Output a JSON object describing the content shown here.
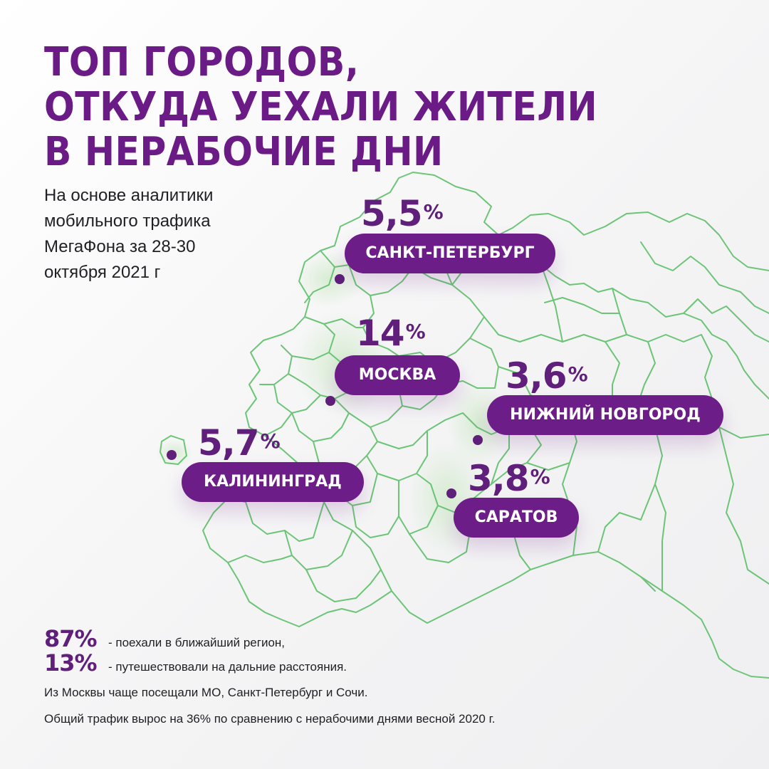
{
  "title": {
    "line1": "ТОП ГОРОДОВ,",
    "line2": "ОТКУДА УЕХАЛИ ЖИТЕЛИ",
    "line3": "В НЕРАБОЧИЕ ДНИ"
  },
  "subtitle": {
    "line1": "На основе аналитики",
    "line2": "мобильного трафика",
    "line3": "МегаФона за 28-30",
    "line4": "октября 2021 г"
  },
  "cities": [
    {
      "name": "САНКТ-ПЕТЕРБУРГ",
      "value": "5,5",
      "unit": "%"
    },
    {
      "name": "МОСКВА",
      "value": "14",
      "unit": "%"
    },
    {
      "name": "НИЖНИЙ НОВГОРОД",
      "value": "3,6",
      "unit": "%"
    },
    {
      "name": "КАЛИНИНГРАД",
      "value": "5,7",
      "unit": "%"
    },
    {
      "name": "САРАТОВ",
      "value": "3,8",
      "unit": "%"
    }
  ],
  "stats": [
    {
      "value": "87%",
      "text": "- поехали в ближайший регион,"
    },
    {
      "value": "13%",
      "text": "- путешествовали на дальние расстояния."
    }
  ],
  "notes": {
    "line1": "Из Москвы чаще посещали МО, Санкт-Петербург и Сочи.",
    "line2": "Общий трафик вырос на 36% по сравнению с нерабочими днями весной 2020 г."
  },
  "colors": {
    "accent": "#6d1d87",
    "map_lines": "#5ec06a",
    "highlight_fill": "#dcefd8"
  }
}
